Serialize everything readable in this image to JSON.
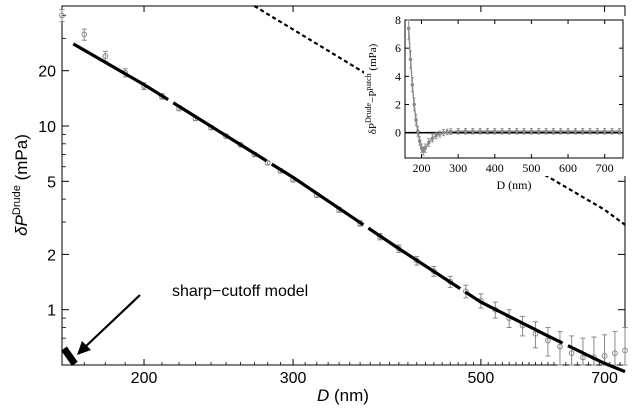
{
  "chart_data": [
    {
      "type": "scatter",
      "x_scale": "log",
      "y_scale": "log",
      "xlim": [
        160,
        740
      ],
      "ylim": [
        0.5,
        45
      ],
      "x_ticks": [
        200,
        300,
        500,
        700
      ],
      "x_tick_labels": [
        "200",
        "300",
        "500",
        "700"
      ],
      "y_ticks": [
        1,
        2,
        5,
        10,
        20
      ],
      "y_tick_labels": [
        "1",
        "2",
        "5",
        "10",
        "20"
      ],
      "xlabel": {
        "symbol": "D",
        "unit": " (nm)"
      },
      "ylabel": {
        "symbol": "δP",
        "sup": "Drude",
        "unit": " (mPa)"
      },
      "annotation": "sharp−cutoff model",
      "series": [
        {
          "style": "gray points with error bars",
          "color": "#8a8a8a",
          "x": [
            160,
            170,
            180,
            190,
            200,
            210,
            220,
            230,
            240,
            250,
            260,
            270,
            280,
            290,
            300,
            320,
            340,
            360,
            380,
            400,
            420,
            440,
            460,
            480,
            500,
            520,
            540,
            560,
            580,
            600,
            620,
            640,
            660,
            680,
            700,
            720,
            740
          ],
          "y": [
            40,
            31.5,
            24,
            19.5,
            16.5,
            14.5,
            12.5,
            11,
            9.8,
            8.8,
            7.9,
            7,
            6.3,
            5.7,
            5.1,
            4.2,
            3.5,
            2.95,
            2.5,
            2.15,
            1.85,
            1.62,
            1.42,
            1.26,
            1.12,
            1.0,
            0.9,
            0.82,
            0.74,
            0.68,
            0.63,
            0.58,
            0.55,
            0.55,
            0.56,
            0.58,
            0.6
          ],
          "err": [
            3,
            2.2,
            1.5,
            1.0,
            0.7,
            0.5,
            0.4,
            0.3,
            0.25,
            0.2,
            0.18,
            0.16,
            0.15,
            0.14,
            0.13,
            0.12,
            0.11,
            0.1,
            0.1,
            0.1,
            0.1,
            0.1,
            0.1,
            0.1,
            0.1,
            0.1,
            0.1,
            0.1,
            0.12,
            0.12,
            0.13,
            0.14,
            0.15,
            0.16,
            0.17,
            0.18,
            0.2
          ]
        },
        {
          "style": "solid black line",
          "color": "#000000",
          "x": [
            165,
            200,
            300,
            400,
            500,
            600,
            700,
            740
          ],
          "y": [
            28,
            16.8,
            5.25,
            2.15,
            1.1,
            0.72,
            0.51,
            0.46
          ]
        },
        {
          "style": "dotted black line",
          "color": "#000000",
          "x": [
            270,
            320,
            400,
            500,
            600,
            700,
            740
          ],
          "y": [
            45,
            28,
            15,
            8.5,
            5.3,
            3.5,
            2.9
          ]
        }
      ],
      "stub_segment": {
        "x": [
          160,
          163
        ],
        "y": [
          0.57,
          0.52
        ]
      }
    },
    {
      "type": "scatter",
      "xlim": [
        155,
        750
      ],
      "ylim": [
        -1.8,
        8
      ],
      "x_ticks": [
        200,
        300,
        400,
        500,
        600,
        700
      ],
      "x_tick_labels": [
        "200",
        "300",
        "400",
        "500",
        "600",
        "700"
      ],
      "y_ticks": [
        -2,
        0,
        2,
        4,
        6,
        8
      ],
      "y_tick_labels": [
        "",
        "0",
        "2",
        "4",
        "6",
        "8"
      ],
      "xlabel": "D (nm)",
      "ylabel": {
        "base": "δP",
        "sup": "Drude",
        "mid": "−P",
        "sup2": "patch",
        "unit": " (mPa)"
      },
      "series": [
        {
          "style": "gray points with error bars",
          "color": "#8a8a8a",
          "x": [
            165,
            170,
            175,
            180,
            185,
            190,
            195,
            200,
            205,
            210,
            220,
            230,
            240,
            250,
            260,
            270,
            280,
            300,
            320,
            340,
            360,
            380,
            400,
            420,
            440,
            460,
            480,
            500,
            520,
            540,
            560,
            580,
            600,
            620,
            640,
            660,
            680,
            700,
            720,
            740
          ],
          "y": [
            7.4,
            5.2,
            3.4,
            2.0,
            0.9,
            0.1,
            -0.6,
            -1.1,
            -1.3,
            -1.1,
            -0.7,
            -0.4,
            -0.2,
            -0.1,
            0.0,
            0.05,
            0.08,
            0.1,
            0.1,
            0.1,
            0.1,
            0.1,
            0.1,
            0.1,
            0.1,
            0.1,
            0.1,
            0.1,
            0.1,
            0.1,
            0.1,
            0.1,
            0.1,
            0.1,
            0.1,
            0.1,
            0.1,
            0.1,
            0.1,
            0.1
          ],
          "err": [
            0.8,
            0.6,
            0.5,
            0.45,
            0.4,
            0.35,
            0.3,
            0.3,
            0.3,
            0.3,
            0.28,
            0.26,
            0.24,
            0.22,
            0.22,
            0.2,
            0.2,
            0.2,
            0.2,
            0.2,
            0.2,
            0.2,
            0.2,
            0.2,
            0.2,
            0.2,
            0.2,
            0.2,
            0.2,
            0.2,
            0.2,
            0.2,
            0.2,
            0.2,
            0.2,
            0.2,
            0.2,
            0.2,
            0.2,
            0.2
          ]
        },
        {
          "style": "solid black baseline",
          "color": "#000000",
          "x": [
            155,
            750
          ],
          "y": [
            0,
            0
          ]
        }
      ]
    }
  ]
}
